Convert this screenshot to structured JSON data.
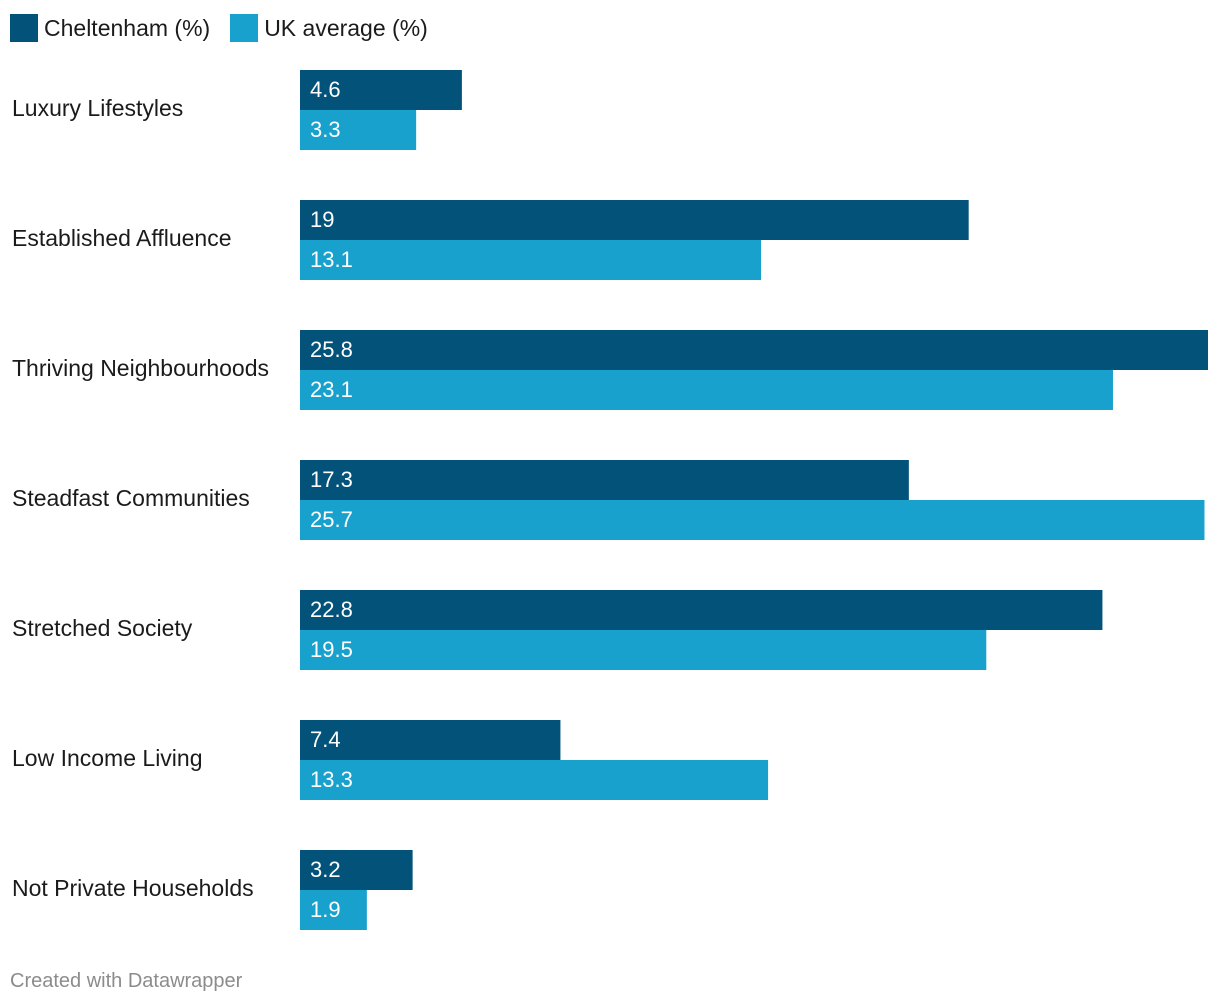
{
  "legend": [
    {
      "label": "Cheltenham (%)",
      "color": "#03527a"
    },
    {
      "label": "UK average (%)",
      "color": "#18a1cd"
    }
  ],
  "footer": "Created with Datawrapper",
  "chart_data": {
    "type": "bar",
    "orientation": "horizontal",
    "categories": [
      "Luxury Lifestyles",
      "Established Affluence",
      "Thriving Neighbourhoods",
      "Steadfast Communities",
      "Stretched Society",
      "Low Income Living",
      "Not Private Households"
    ],
    "series": [
      {
        "name": "Cheltenham (%)",
        "color": "#03527a",
        "values": [
          4.6,
          19,
          25.8,
          17.3,
          22.8,
          7.4,
          3.2
        ],
        "labels": [
          "4.6",
          "19",
          "25.8",
          "17.3",
          "22.8",
          "7.4",
          "3.2"
        ]
      },
      {
        "name": "UK average (%)",
        "color": "#18a1cd",
        "values": [
          3.3,
          13.1,
          23.1,
          25.7,
          19.5,
          13.3,
          1.9
        ],
        "labels": [
          "3.3",
          "13.1",
          "23.1",
          "25.7",
          "19.5",
          "13.3",
          "1.9"
        ]
      }
    ],
    "xlim": [
      0,
      25.8
    ],
    "grid": false,
    "legend_position": "top-left"
  }
}
